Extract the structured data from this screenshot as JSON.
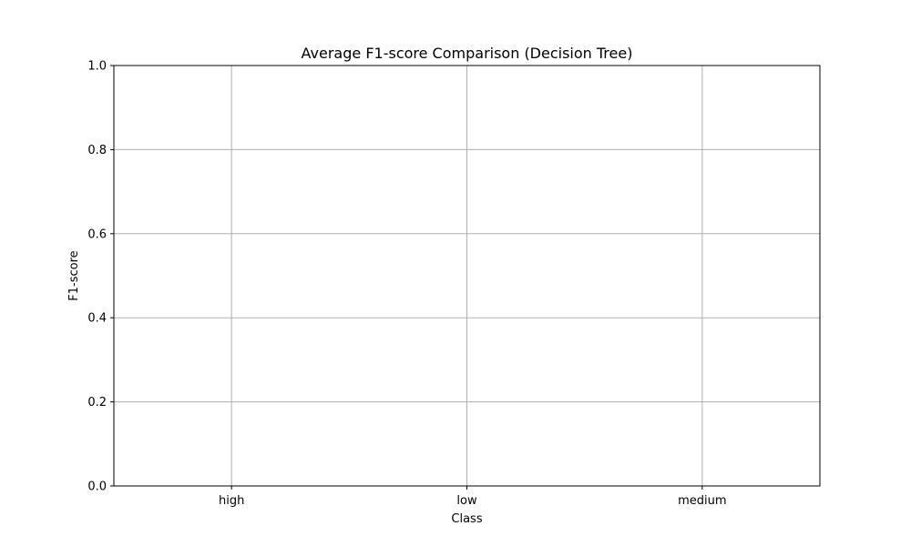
{
  "chart_data": {
    "type": "bar",
    "title": "Average F1-score Comparison (Decision Tree)",
    "xlabel": "Class",
    "ylabel": "F1-score",
    "categories": [
      "high",
      "low",
      "medium"
    ],
    "series": [],
    "ylim": [
      0,
      1.0
    ],
    "yticks": [
      "0.0",
      "0.2",
      "0.4",
      "0.6",
      "0.8",
      "1.0"
    ],
    "grid": true,
    "legend": "none",
    "colors": {
      "grid": "#b0b0b0",
      "axis": "#000000",
      "background": "#ffffff"
    }
  }
}
